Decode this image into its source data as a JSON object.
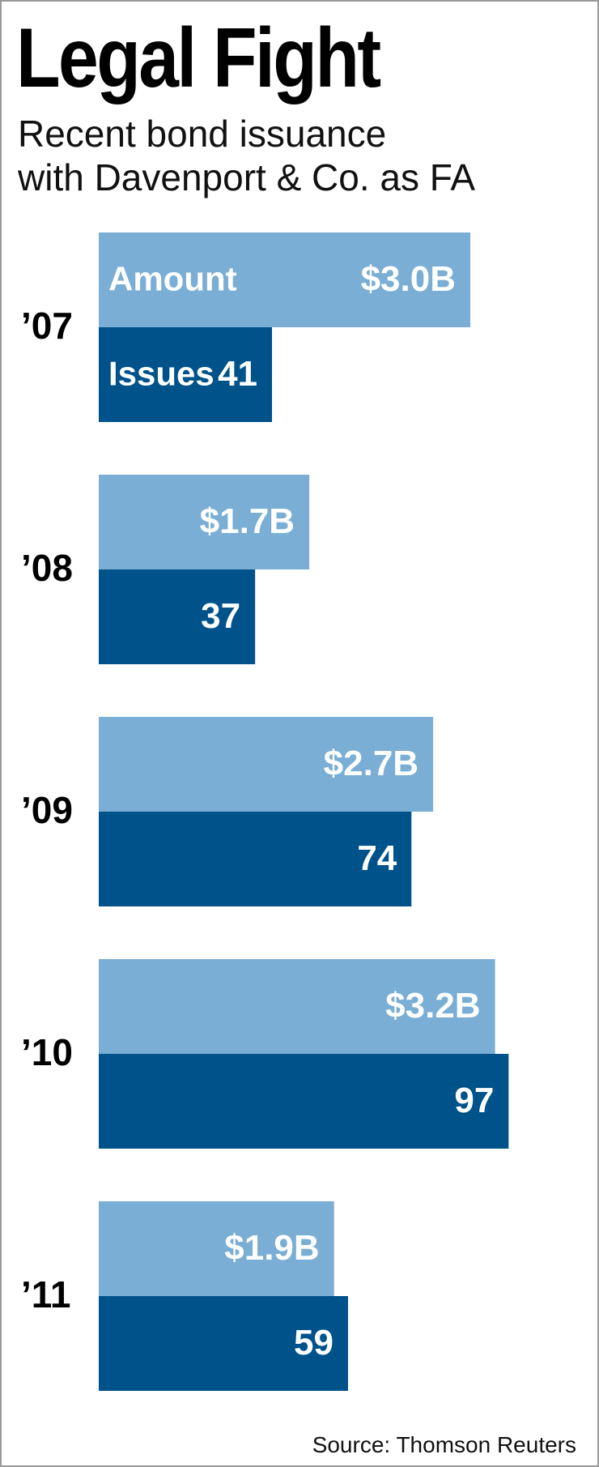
{
  "header": {
    "title": "Legal Fight",
    "subtitle_line1": "Recent bond issuance",
    "subtitle_line2": "with Davenport & Co. as FA"
  },
  "source": "Source: Thomson Reuters",
  "colors": {
    "amount": "#7aaed5",
    "issues": "#00528a",
    "year_text": "#000000",
    "bar_text": "#ffffff"
  },
  "chart_data": {
    "type": "bar",
    "orientation": "horizontal",
    "categories": [
      "’07",
      "’08",
      "’09",
      "’10",
      "’11"
    ],
    "series": [
      {
        "name": "Amount",
        "values": [
          3.0,
          1.7,
          2.7,
          3.2,
          1.9
        ],
        "labels": [
          "$3.0B",
          "$1.7B",
          "$2.7B",
          "$3.2B",
          "$1.9B"
        ]
      },
      {
        "name": "Issues",
        "values": [
          41,
          37,
          74,
          97,
          59
        ],
        "labels": [
          "41",
          "37",
          "74",
          "97",
          "59"
        ]
      }
    ],
    "title": "Legal Fight",
    "subtitle": "Recent bond issuance with Davenport & Co. as FA",
    "grid": false,
    "legend": "inline labels on first group"
  }
}
